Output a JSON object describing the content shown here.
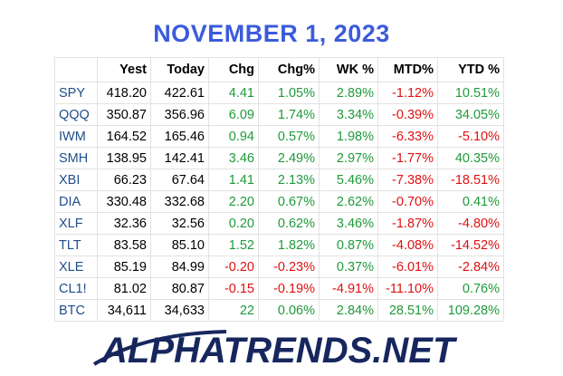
{
  "header": {
    "title": "NOVEMBER 1, 2023"
  },
  "table": {
    "columns": [
      "Yest",
      "Today",
      "Chg",
      "Chg%",
      "WK %",
      "MTD%",
      "YTD %"
    ],
    "rows": [
      [
        "SPY",
        "418.20",
        "422.61",
        "4.41",
        "1.05%",
        "2.89%",
        "-1.12%",
        "10.51%"
      ],
      [
        "QQQ",
        "350.87",
        "356.96",
        "6.09",
        "1.74%",
        "3.34%",
        "-0.39%",
        "34.05%"
      ],
      [
        "IWM",
        "164.52",
        "165.46",
        "0.94",
        "0.57%",
        "1.98%",
        "-6.33%",
        "-5.10%"
      ],
      [
        "SMH",
        "138.95",
        "142.41",
        "3.46",
        "2.49%",
        "2.97%",
        "-1.77%",
        "40.35%"
      ],
      [
        "XBI",
        "66.23",
        "67.64",
        "1.41",
        "2.13%",
        "5.46%",
        "-7.38%",
        "-18.51%"
      ],
      [
        "DIA",
        "330.48",
        "332.68",
        "2.20",
        "0.67%",
        "2.62%",
        "-0.70%",
        "0.41%"
      ],
      [
        "XLF",
        "32.36",
        "32.56",
        "0.20",
        "0.62%",
        "3.46%",
        "-1.87%",
        "-4.80%"
      ],
      [
        "TLT",
        "83.58",
        "85.10",
        "1.52",
        "1.82%",
        "0.87%",
        "-4.08%",
        "-14.52%"
      ],
      [
        "XLE",
        "85.19",
        "84.99",
        "-0.20",
        "-0.23%",
        "0.37%",
        "-6.01%",
        "-2.84%"
      ],
      [
        "CL1!",
        "81.02",
        "80.87",
        "-0.15",
        "-0.19%",
        "-4.91%",
        "-11.10%",
        "0.76%"
      ],
      [
        "BTC",
        "34,611",
        "34,633",
        "22",
        "0.06%",
        "2.84%",
        "28.51%",
        "109.28%"
      ]
    ]
  },
  "footer": {
    "logo": "ALPHATRENDS.NET"
  }
}
